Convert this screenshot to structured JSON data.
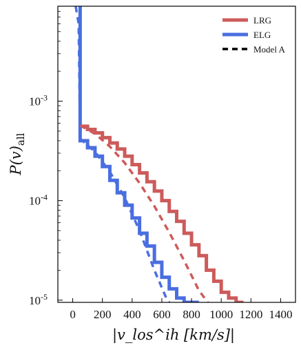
{
  "chart_data": {
    "type": "line",
    "xlabel": "|v_los^ih [km/s]|",
    "ylabel": "P(v)_all",
    "xlim": [
      -100,
      1500
    ],
    "ylog": true,
    "ylim": [
      9.5e-06,
      0.009
    ],
    "x_ticks": [
      0,
      200,
      400,
      600,
      800,
      1000,
      1200,
      1400
    ],
    "x_tick_labels": [
      "0",
      "200",
      "400",
      "600",
      "800",
      "1000",
      "1200",
      "1400"
    ],
    "y_ticks": [
      0.001,
      0.0001,
      1e-05
    ],
    "y_tick_labels": [
      {
        "base": "10",
        "exp": "-3"
      },
      {
        "base": "10",
        "exp": "-4"
      },
      {
        "base": "10",
        "exp": "-5"
      }
    ],
    "legend_position": "top-right",
    "legend": [
      {
        "label": "LRG",
        "color": "#cd5b5b",
        "style": "solid"
      },
      {
        "label": "ELG",
        "color": "#4a6ee0",
        "style": "solid"
      },
      {
        "label": "Model A",
        "color": "#000000",
        "style": "dashed"
      }
    ],
    "series": [
      {
        "name": "LRG",
        "color": "#cd5b5b",
        "style": "step",
        "bin_edges": [
          50,
          100,
          150,
          200,
          250,
          300,
          350,
          400,
          450,
          500,
          550,
          600,
          650,
          700,
          750,
          800,
          850,
          900,
          950,
          1000,
          1050,
          1100,
          1150
        ],
        "values": [
          0.00056,
          0.00052,
          0.00048,
          0.00043,
          0.00038,
          0.00033,
          0.00028,
          0.00023,
          0.00019,
          0.000155,
          0.000125,
          0.0001,
          7.8e-05,
          6.2e-05,
          4.7e-05,
          3.6e-05,
          2.8e-05,
          2e-05,
          1.55e-05,
          1.2e-05,
          1.05e-05,
          9.5e-06
        ]
      },
      {
        "name": "ELG",
        "color": "#4a6ee0",
        "style": "step",
        "vertical_start": {
          "x": 50,
          "from": 0.009,
          "to": 0.0004
        },
        "bin_edges": [
          50,
          100,
          150,
          200,
          250,
          300,
          350,
          400,
          450,
          500,
          550,
          600,
          650,
          700,
          750,
          800,
          850
        ],
        "values": [
          0.0004,
          0.00034,
          0.00028,
          0.00022,
          0.00016,
          0.00012,
          9e-05,
          6.7e-05,
          4.7e-05,
          3.5e-05,
          2.4e-05,
          1.7e-05,
          1.3e-05,
          1.05e-05,
          9.5e-06,
          9.5e-06
        ]
      },
      {
        "name": "Model A (LRG)",
        "color": "#cd5b5b",
        "style": "dashed",
        "x": [
          50,
          150,
          250,
          350,
          450,
          550,
          650,
          750,
          850,
          910
        ],
        "y": [
          0.00057,
          0.00047,
          0.00035,
          0.00024,
          0.00015,
          8.8e-05,
          4.8e-05,
          2.5e-05,
          1.25e-05,
          9.5e-06
        ]
      },
      {
        "name": "Model A (ELG)",
        "color": "#4a6ee0",
        "style": "dashed",
        "x": [
          20,
          40,
          50,
          150,
          250,
          350,
          450,
          550,
          630,
          650
        ],
        "y": [
          0.009,
          0.006,
          0.00042,
          0.00031,
          0.000195,
          0.000107,
          5e-05,
          2e-05,
          1.05e-05,
          9.5e-06
        ]
      }
    ]
  }
}
